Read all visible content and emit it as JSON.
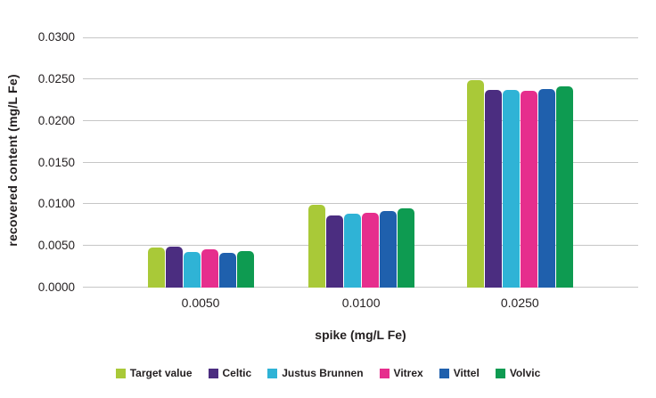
{
  "chart_data": {
    "type": "bar",
    "title": "",
    "xlabel": "spike (mg/L Fe)",
    "ylabel": "recovered content (mg/L Fe)",
    "categories": [
      "0.0050",
      "0.0100",
      "0.0250"
    ],
    "series": [
      {
        "name": "Target value",
        "color": "#a9c938",
        "values": [
          0.0048,
          0.0099,
          0.0249
        ]
      },
      {
        "name": "Celtic",
        "color": "#4b2d80",
        "values": [
          0.0049,
          0.0087,
          0.0237
        ]
      },
      {
        "name": "Justus Brunnen",
        "color": "#2fb3d6",
        "values": [
          0.0043,
          0.0089,
          0.0237
        ]
      },
      {
        "name": "Vitrex",
        "color": "#e62e8d",
        "values": [
          0.0046,
          0.009,
          0.0236
        ]
      },
      {
        "name": "Vittel",
        "color": "#1f60ad",
        "values": [
          0.0042,
          0.0092,
          0.0238
        ]
      },
      {
        "name": "Volvic",
        "color": "#0e9b51",
        "values": [
          0.0044,
          0.0095,
          0.0241
        ]
      }
    ],
    "ylim": [
      0,
      0.03
    ],
    "yticks": [
      "0.0000",
      "0.0050",
      "0.0100",
      "0.0150",
      "0.0200",
      "0.0250",
      "0.0300"
    ],
    "grid": true,
    "legend_position": "bottom",
    "group_center_percents": [
      21.2,
      50.1,
      78.7
    ]
  },
  "colors": {
    "background": "#ffffff",
    "gridline": "#c6c6c6",
    "text": "#231f20"
  }
}
